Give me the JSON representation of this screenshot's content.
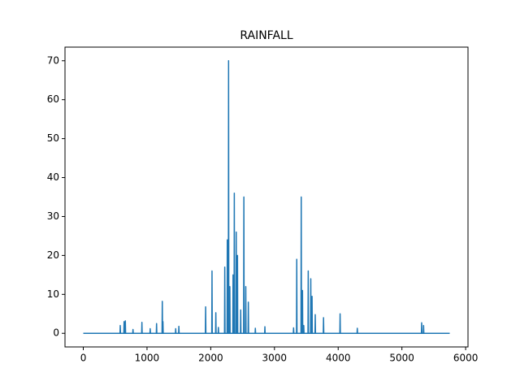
{
  "chart_data": {
    "type": "line",
    "title": "RAINFALL",
    "color": "#1f77b4",
    "x": [
      0,
      576,
      580,
      584,
      636,
      640,
      644,
      656,
      660,
      664,
      776,
      780,
      784,
      916,
      920,
      924,
      1046,
      1050,
      1054,
      1146,
      1150,
      1154,
      1236,
      1240,
      1244,
      1248,
      1250,
      1254,
      1446,
      1450,
      1454,
      1496,
      1500,
      1504,
      1916,
      1920,
      1924,
      2016,
      2020,
      2024,
      2076,
      2080,
      2084,
      2116,
      2120,
      2124,
      2216,
      2220,
      2224,
      2256,
      2260,
      2264,
      2276,
      2280,
      2284,
      2296,
      2300,
      2304,
      2346,
      2350,
      2354,
      2366,
      2370,
      2374,
      2396,
      2400,
      2404,
      2416,
      2420,
      2424,
      2466,
      2470,
      2474,
      2516,
      2520,
      2524,
      2546,
      2550,
      2554,
      2586,
      2590,
      2594,
      2696,
      2700,
      2704,
      2846,
      2850,
      2854,
      3296,
      3300,
      3304,
      3346,
      3350,
      3354,
      3416,
      3420,
      3424,
      3436,
      3440,
      3444,
      3456,
      3460,
      3464,
      3526,
      3530,
      3534,
      3566,
      3570,
      3574,
      3586,
      3590,
      3594,
      3636,
      3640,
      3644,
      3766,
      3770,
      3774,
      4026,
      4030,
      4034,
      4296,
      4300,
      4304,
      5306,
      5310,
      5314,
      5336,
      5340,
      5344,
      5750
    ],
    "y": [
      0,
      0,
      2,
      0,
      0,
      3,
      0,
      0,
      3.2,
      0,
      0,
      1,
      0,
      0,
      2.8,
      0,
      0,
      1.2,
      0,
      0,
      2.5,
      0,
      0,
      8.2,
      0,
      0,
      3,
      0,
      0,
      1.2,
      0,
      0,
      1.8,
      0,
      0,
      6.8,
      0,
      0,
      16,
      0,
      0,
      5.3,
      0,
      0,
      1.5,
      0,
      0,
      17,
      0,
      0,
      24,
      0,
      0,
      70,
      0,
      0,
      12,
      0,
      0,
      15,
      0,
      0,
      36,
      0,
      0,
      26,
      0,
      0,
      20,
      0,
      0,
      6,
      0,
      0,
      35,
      0,
      0,
      12,
      0,
      0,
      8,
      0,
      0,
      1.3,
      0,
      0,
      1.7,
      0,
      0,
      1.4,
      0,
      0,
      19,
      0,
      0,
      35,
      0,
      0,
      11,
      0,
      0,
      2,
      0,
      0,
      16,
      0,
      0,
      14,
      0,
      0,
      9.5,
      0,
      0,
      4.8,
      0,
      0,
      4,
      0,
      0,
      5,
      0,
      0,
      1.3,
      0,
      0,
      2.7,
      0,
      0,
      2,
      0,
      0
    ],
    "xlim": [
      -287,
      6037
    ],
    "ylim": [
      -3.5,
      73.5
    ],
    "xticks": [
      0,
      1000,
      2000,
      3000,
      4000,
      5000,
      6000
    ],
    "yticks": [
      0,
      10,
      20,
      30,
      40,
      50,
      60,
      70
    ]
  }
}
